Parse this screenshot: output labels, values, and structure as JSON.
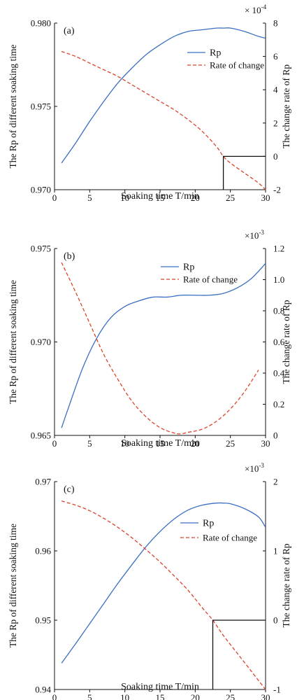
{
  "chart_data": [
    {
      "type": "line",
      "panel_label": "(a)",
      "xlabel": "Soaking time T/min",
      "ylabel_left": "The Rp of different soaking time",
      "ylabel_right": "The change rate of Rp",
      "xlim": [
        0,
        30
      ],
      "xticks": [
        0,
        5,
        10,
        15,
        20,
        25,
        30
      ],
      "xtick_labels": [
        "0",
        "5",
        "10",
        "15",
        "20",
        "25",
        "30"
      ],
      "ylim_left": [
        0.97,
        0.98
      ],
      "yticks_left": [
        0.97,
        0.975,
        0.98
      ],
      "ytick_labels_left": [
        "0.970",
        "0.975",
        "0.980"
      ],
      "ylim_right": [
        -2,
        8
      ],
      "yticks_right": [
        -2,
        0,
        2,
        4,
        6,
        8
      ],
      "ytick_labels_right": [
        "-2",
        "0",
        "2",
        "4",
        "6",
        "8"
      ],
      "right_multiplier": "× 10-4",
      "legend_position": "top-right",
      "series": [
        {
          "name": "Rp",
          "axis": "left",
          "style": "solid",
          "color": "#3a6fc4",
          "x": [
            1,
            3,
            5,
            7,
            9,
            11,
            13,
            15,
            17,
            19,
            21,
            23,
            24,
            25,
            27,
            29,
            30
          ],
          "y": [
            0.9716,
            0.9728,
            0.9741,
            0.9753,
            0.9764,
            0.9773,
            0.9781,
            0.9787,
            0.9792,
            0.9795,
            0.9796,
            0.9797,
            0.9797,
            0.9797,
            0.9795,
            0.9792,
            0.9791
          ]
        },
        {
          "name": "Rate of change",
          "axis": "right",
          "style": "dashed",
          "color": "#d9442b",
          "x": [
            1,
            3,
            5,
            7,
            9,
            11,
            13,
            15,
            17,
            19,
            21,
            23,
            24,
            25,
            27,
            29,
            30
          ],
          "y": [
            6.3,
            6.0,
            5.6,
            5.2,
            4.8,
            4.3,
            3.8,
            3.3,
            2.8,
            2.2,
            1.5,
            0.6,
            0.0,
            -0.4,
            -1.0,
            -1.6,
            -2.0
          ]
        }
      ],
      "marker_x": 24,
      "marker_y_right": 0
    },
    {
      "type": "line",
      "panel_label": "(b)",
      "xlabel": "Soaking time T/min",
      "ylabel_left": "The Rp of different soaking time",
      "ylabel_right": "The change rate of Rp",
      "xlim": [
        0,
        30
      ],
      "xticks": [
        0,
        5,
        10,
        15,
        20,
        25,
        30
      ],
      "xtick_labels": [
        "0",
        "5",
        "10",
        "15",
        "20",
        "25",
        "30"
      ],
      "ylim_left": [
        0.965,
        0.975
      ],
      "yticks_left": [
        0.965,
        0.97,
        0.975
      ],
      "ytick_labels_left": [
        "0.965",
        "0.970",
        "0.975"
      ],
      "ylim_right": [
        0,
        1.2
      ],
      "yticks_right": [
        0,
        0.2,
        0.4,
        0.6,
        0.8,
        1.0,
        1.2
      ],
      "ytick_labels_right": [
        "0",
        "0.2",
        "0.4",
        "0.6",
        "0.8",
        "1.0",
        "1.2"
      ],
      "right_multiplier": "×10-3",
      "legend_position": "top-right",
      "series": [
        {
          "name": "Rp",
          "axis": "left",
          "style": "solid",
          "color": "#3a6fc4",
          "x": [
            1,
            2,
            4,
            6,
            8,
            10,
            12,
            14,
            16,
            18,
            20,
            22,
            24,
            26,
            28,
            30
          ],
          "y": [
            0.9654,
            0.9665,
            0.9686,
            0.9702,
            0.9713,
            0.9719,
            0.9722,
            0.9724,
            0.9724,
            0.9725,
            0.9725,
            0.9725,
            0.9726,
            0.9729,
            0.9734,
            0.9742
          ]
        },
        {
          "name": "Rate of change",
          "axis": "right",
          "style": "dashed",
          "color": "#d9442b",
          "x": [
            1,
            3,
            5,
            7,
            9,
            11,
            13,
            15,
            17,
            18,
            19,
            21,
            23,
            25,
            27,
            29
          ],
          "y": [
            1.11,
            0.92,
            0.72,
            0.52,
            0.36,
            0.22,
            0.12,
            0.05,
            0.015,
            0.01,
            0.02,
            0.04,
            0.09,
            0.17,
            0.28,
            0.42
          ]
        }
      ]
    },
    {
      "type": "line",
      "panel_label": "(c)",
      "xlabel": "Soaking time T/min",
      "ylabel_left": "The Rp of different soaking time",
      "ylabel_right": "The change rate of Rp",
      "xlim": [
        0,
        30
      ],
      "xticks": [
        0,
        5,
        10,
        15,
        20,
        25,
        30
      ],
      "xtick_labels": [
        "0",
        "5",
        "10",
        "15",
        "20",
        "25",
        "30"
      ],
      "ylim_left": [
        0.94,
        0.97
      ],
      "yticks_left": [
        0.94,
        0.95,
        0.96,
        0.97
      ],
      "ytick_labels_left": [
        "0.94",
        "0.95",
        "0.96",
        "0.97"
      ],
      "ylim_right": [
        -1,
        2
      ],
      "yticks_right": [
        -1,
        0,
        1,
        2
      ],
      "ytick_labels_right": [
        "-1",
        "0",
        "1",
        "2"
      ],
      "right_multiplier": "×10-3",
      "legend_position": "top-right",
      "series": [
        {
          "name": "Rp",
          "axis": "left",
          "style": "solid",
          "color": "#3a6fc4",
          "x": [
            1,
            3,
            5,
            7,
            9,
            11,
            13,
            15,
            17,
            19,
            21,
            23,
            24,
            25,
            27,
            29,
            30
          ],
          "y": [
            0.9438,
            0.9466,
            0.9495,
            0.9524,
            0.9553,
            0.958,
            0.9606,
            0.9628,
            0.9646,
            0.9659,
            0.9666,
            0.9669,
            0.9669,
            0.9668,
            0.9661,
            0.9649,
            0.9634
          ]
        },
        {
          "name": "Rate of change",
          "axis": "right",
          "style": "dashed",
          "color": "#d9442b",
          "x": [
            1,
            3,
            5,
            7,
            9,
            11,
            13,
            15,
            17,
            19,
            21,
            22.5,
            24,
            26,
            28,
            30
          ],
          "y": [
            1.72,
            1.66,
            1.58,
            1.47,
            1.34,
            1.19,
            1.02,
            0.84,
            0.64,
            0.43,
            0.18,
            0.0,
            -0.22,
            -0.48,
            -0.74,
            -1.0
          ]
        }
      ],
      "marker_x": 22.5,
      "marker_y_right": 0
    }
  ]
}
